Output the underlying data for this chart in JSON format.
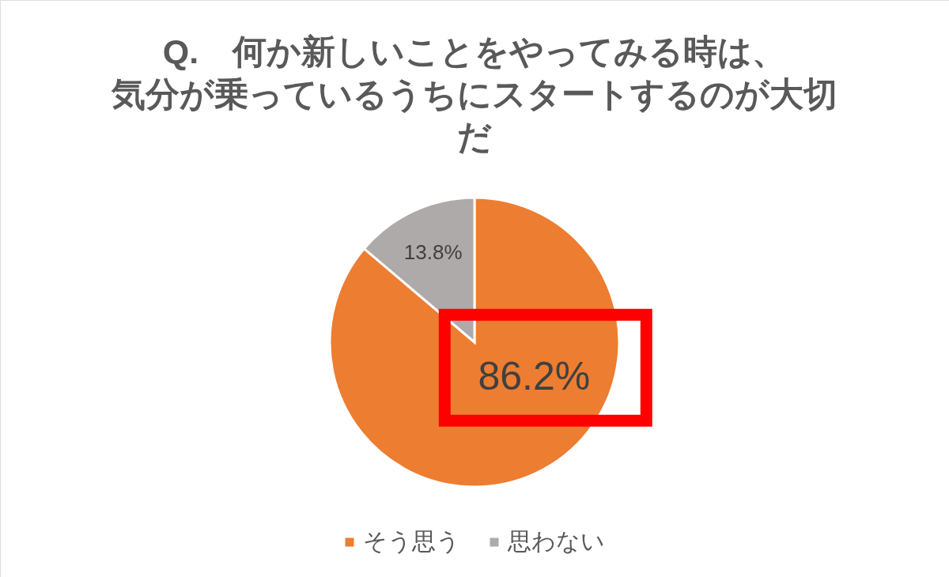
{
  "chart_data": {
    "type": "pie",
    "title": "Q.　何か新しいことをやってみる時は、気分が乗っているうちにスタートするのが大切だ",
    "categories": [
      "そう思う",
      "思わない"
    ],
    "values": [
      86.2,
      13.8
    ],
    "colors": [
      "#ed7d31",
      "#aeaaaa"
    ],
    "value_labels": [
      "86.2%",
      "13.8%"
    ],
    "legend": "bottom"
  }
}
